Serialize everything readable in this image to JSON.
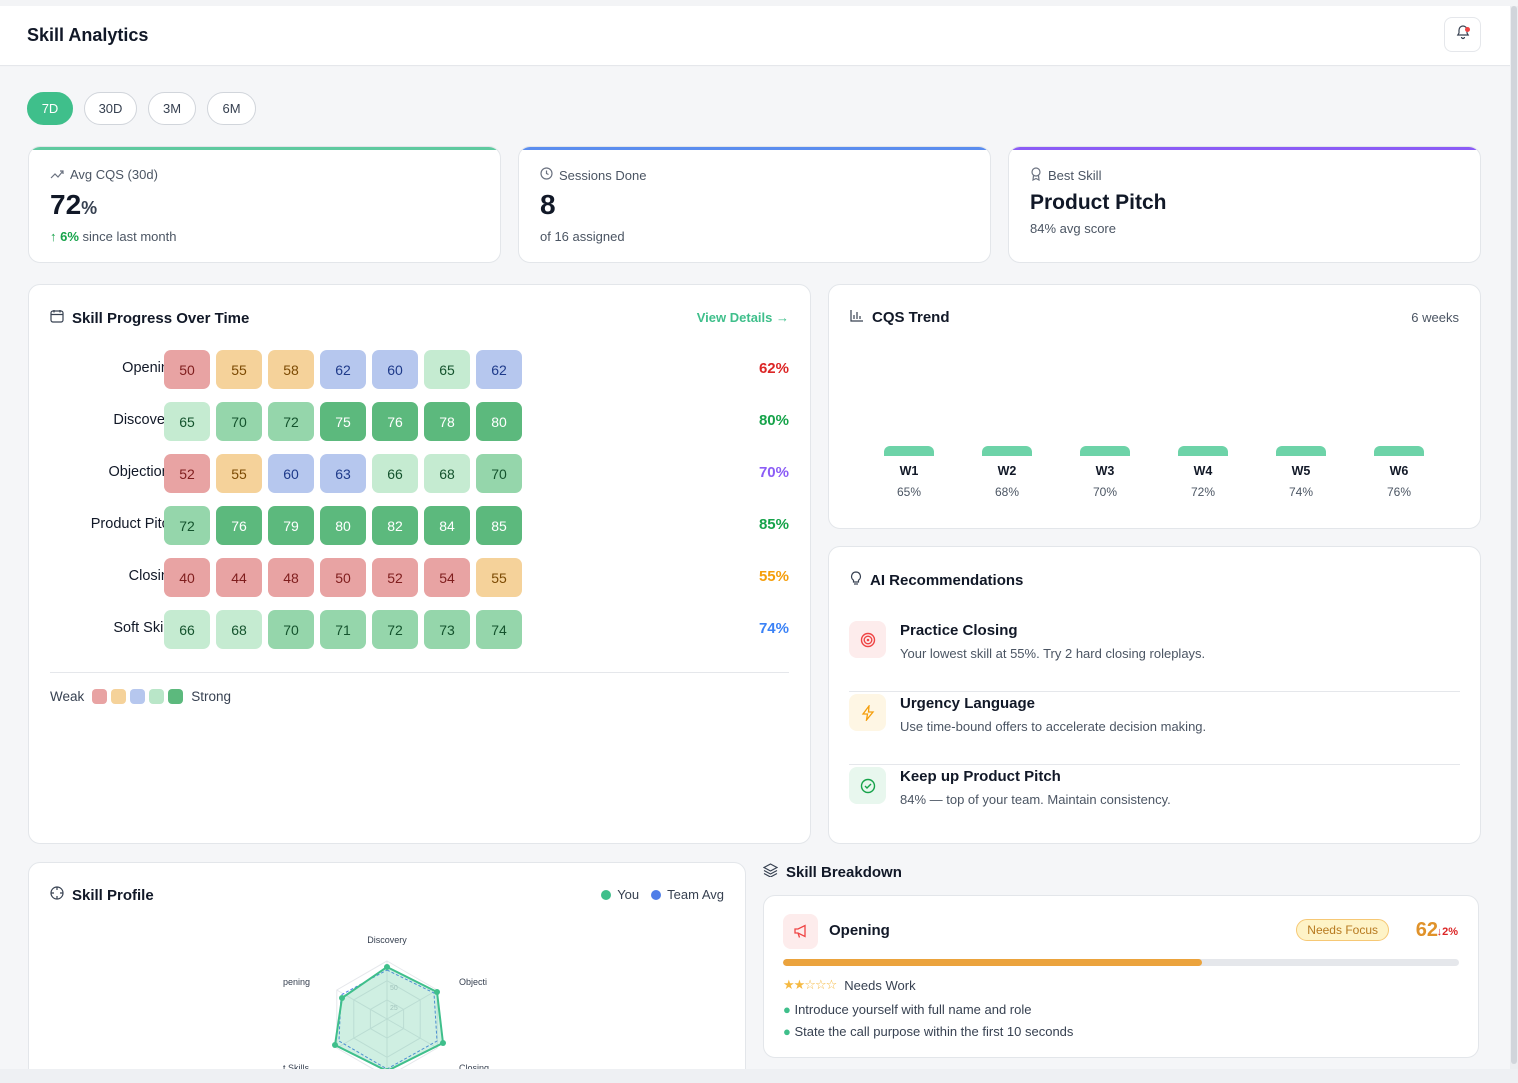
{
  "app": {
    "title": "Skill Analytics"
  },
  "ranges": [
    "7D",
    "30D",
    "3M",
    "6M"
  ],
  "stats": [
    {
      "label": "Avg CQS (30d)",
      "value": "72",
      "unit": "%",
      "delta": "6%",
      "sub": "since last month",
      "accent": "#5fcaa0"
    },
    {
      "label": "Sessions Done",
      "value": "8",
      "sub": "of 16 assigned",
      "accent": "#5b8def"
    },
    {
      "label": "Best Skill",
      "value": "Product Pitch",
      "sub": "84% avg score",
      "accent": "#8b5cf6"
    }
  ],
  "progress": {
    "title": "Skill Progress Over Time",
    "link": "View Details →",
    "rows": [
      {
        "label": "Opening",
        "values": [
          "50",
          "55",
          "58",
          "62",
          "60",
          "65",
          "62"
        ],
        "pct": "62%",
        "pctColor": "#dc2626"
      },
      {
        "label": "Discovery",
        "values": [
          "65",
          "70",
          "72",
          "75",
          "76",
          "78",
          "80"
        ],
        "pct": "80%",
        "pctColor": "#16a34a"
      },
      {
        "label": "Objections",
        "values": [
          "52",
          "55",
          "60",
          "63",
          "66",
          "68",
          "70"
        ],
        "pct": "70%",
        "pctColor": "#8b5cf6"
      },
      {
        "label": "Product Pitch",
        "values": [
          "72",
          "76",
          "79",
          "80",
          "82",
          "84",
          "85"
        ],
        "pct": "85%",
        "pctColor": "#16a34a"
      },
      {
        "label": "Closing",
        "values": [
          "40",
          "44",
          "48",
          "50",
          "52",
          "54",
          "55"
        ],
        "pct": "55%",
        "pctColor": "#f59e0b"
      },
      {
        "label": "Soft Skills",
        "values": [
          "66",
          "68",
          "70",
          "71",
          "72",
          "73",
          "74"
        ],
        "pct": "74%",
        "pctColor": "#3b82f6"
      }
    ],
    "legend": {
      "weak": "Weak",
      "strong": "Strong"
    }
  },
  "trend": {
    "title": "CQS Trend",
    "period": "6 weeks",
    "weeks": [
      {
        "label": "W1",
        "pct": "65%"
      },
      {
        "label": "W2",
        "pct": "68%"
      },
      {
        "label": "W3",
        "pct": "70%"
      },
      {
        "label": "W4",
        "pct": "72%"
      },
      {
        "label": "W5",
        "pct": "74%"
      },
      {
        "label": "W6",
        "pct": "76%"
      }
    ]
  },
  "recommendations": {
    "title": "AI Recommendations",
    "items": [
      {
        "title": "Practice Closing",
        "desc": "Your lowest skill at 55%. Try 2 hard closing roleplays.",
        "icon": "target-icon",
        "color": "#ef4444",
        "bg": "#fdecec"
      },
      {
        "title": "Urgency Language",
        "desc": "Use time-bound offers to accelerate decision making.",
        "icon": "lightning-icon",
        "color": "#f59e0b",
        "bg": "#fef6e4"
      },
      {
        "title": "Keep up Product Pitch",
        "desc": "84% — top of your team. Maintain consistency.",
        "icon": "check-circle-icon",
        "color": "#16a34a",
        "bg": "#e8f7ee"
      }
    ]
  },
  "profile": {
    "title": "Skill Profile",
    "legend": [
      "You",
      "Team Avg"
    ],
    "axes": [
      "Discovery",
      "Objecti",
      "Closing",
      "t Skills",
      "pening"
    ],
    "ticks": [
      "50",
      "25"
    ]
  },
  "breakdown": {
    "title": "Skill Breakdown",
    "skill": "Opening",
    "badge": "Needs Focus",
    "score": "62",
    "delta": "↓2%",
    "progress": 0.62,
    "rating": "Needs Work",
    "stars": 2,
    "tips": [
      "Introduce yourself with full name and role",
      "State the call purpose within the first 10 seconds"
    ]
  }
}
